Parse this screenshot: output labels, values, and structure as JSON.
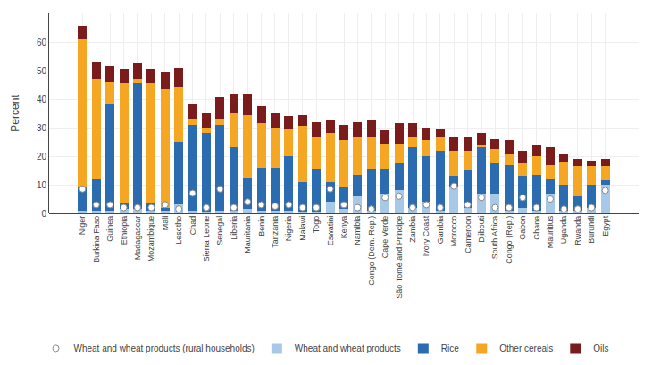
{
  "chart_data": {
    "type": "bar",
    "stacked": true,
    "ylabel": "Percent",
    "categories": [
      "Niger",
      "Burkina Faso",
      "Guinea",
      "Ethiopia",
      "Madagascar",
      "Mozambique",
      "Mali",
      "Lesotho",
      "Chad",
      "Sierra Leone",
      "Senegal",
      "Liberia",
      "Mauritania",
      "Benin",
      "Tanzania",
      "Nigeria",
      "Malawi",
      "Togo",
      "Eswatini",
      "Kenya",
      "Namibia",
      "Congo (Dem. Rep.)",
      "Cape Verde",
      "São Tomé and Principe",
      "Zambia",
      "Ivory Coast",
      "Gambia",
      "Morocco",
      "Cameroon",
      "Djibouti",
      "South Africa",
      "Congo (Rep.)",
      "Gabon",
      "Ghana",
      "Mauritius",
      "Uganda",
      "Rwanda",
      "Burundi",
      "Egypt"
    ],
    "series": [
      {
        "name": "Wheat and wheat products (rural households)",
        "type": "scatter",
        "marker": "circle",
        "color": "#ffffff",
        "values": [
          8.5,
          3.0,
          3.0,
          2.0,
          2.0,
          2.0,
          3.0,
          1.5,
          7.0,
          2.0,
          8.5,
          2.0,
          4.0,
          3.0,
          2.5,
          3.0,
          2.0,
          2.0,
          8.5,
          3.0,
          2.0,
          1.5,
          5.5,
          6.0,
          2.0,
          3.0,
          2.0,
          9.5,
          3.0,
          5.5,
          2.0,
          2.0,
          5.5,
          2.0,
          5.0,
          1.5,
          1.5,
          2.0,
          8.0
        ]
      },
      {
        "name": "Wheat and wheat products",
        "type": "bar",
        "color": "#a8c8e8",
        "values": [
          1.0,
          1.0,
          1.0,
          1.5,
          1.5,
          1.0,
          1.0,
          3.0,
          1.0,
          0.5,
          1.0,
          1.0,
          1.5,
          1.0,
          1.0,
          1.0,
          0.5,
          0.5,
          4.0,
          1.5,
          6.0,
          1.0,
          7.0,
          8.0,
          2.0,
          4.0,
          1.0,
          9.5,
          2.0,
          7.0,
          7.0,
          1.0,
          2.0,
          1.0,
          7.0,
          1.0,
          1.0,
          2.0,
          10.0
        ]
      },
      {
        "name": "Rice",
        "type": "bar",
        "color": "#2b6cb0",
        "values": [
          8.0,
          11.0,
          37.0,
          2.0,
          44.0,
          2.5,
          1.0,
          22.0,
          30.0,
          27.5,
          30.0,
          22.0,
          11.0,
          15.0,
          15.0,
          19.0,
          10.5,
          15.0,
          7.0,
          8.0,
          7.5,
          14.5,
          8.5,
          9.5,
          21.0,
          16.0,
          21.0,
          3.5,
          13.0,
          16.0,
          10.5,
          16.0,
          11.0,
          12.5,
          5.0,
          9.0,
          5.0,
          8.0,
          1.5
        ]
      },
      {
        "name": "Other cereals",
        "type": "bar",
        "color": "#f5a623",
        "values": [
          52.0,
          35.0,
          8.0,
          42.0,
          1.5,
          42.0,
          41.5,
          19.0,
          2.0,
          2.0,
          2.0,
          12.0,
          22.0,
          15.5,
          14.0,
          9.5,
          19.5,
          11.5,
          17.0,
          16.0,
          13.0,
          11.0,
          9.0,
          7.0,
          4.0,
          5.5,
          4.5,
          9.0,
          7.0,
          1.0,
          5.0,
          3.5,
          4.5,
          6.5,
          5.0,
          8.0,
          10.5,
          6.5,
          5.0
        ]
      },
      {
        "name": "Oils",
        "type": "bar",
        "color": "#7b1c1c",
        "values": [
          4.5,
          6.0,
          5.5,
          5.0,
          5.5,
          5.0,
          6.0,
          7.0,
          5.5,
          5.0,
          7.5,
          7.0,
          7.5,
          6.0,
          5.0,
          4.5,
          4.0,
          5.0,
          4.5,
          5.5,
          5.5,
          6.0,
          4.5,
          7.0,
          4.5,
          4.5,
          3.0,
          5.0,
          4.5,
          4.0,
          3.5,
          5.0,
          4.5,
          4.0,
          6.0,
          2.5,
          2.5,
          2.0,
          2.5
        ]
      }
    ],
    "ylim": [
      0,
      70
    ],
    "yticks": [
      0,
      10,
      20,
      30,
      40,
      50,
      60
    ],
    "grid": true
  }
}
